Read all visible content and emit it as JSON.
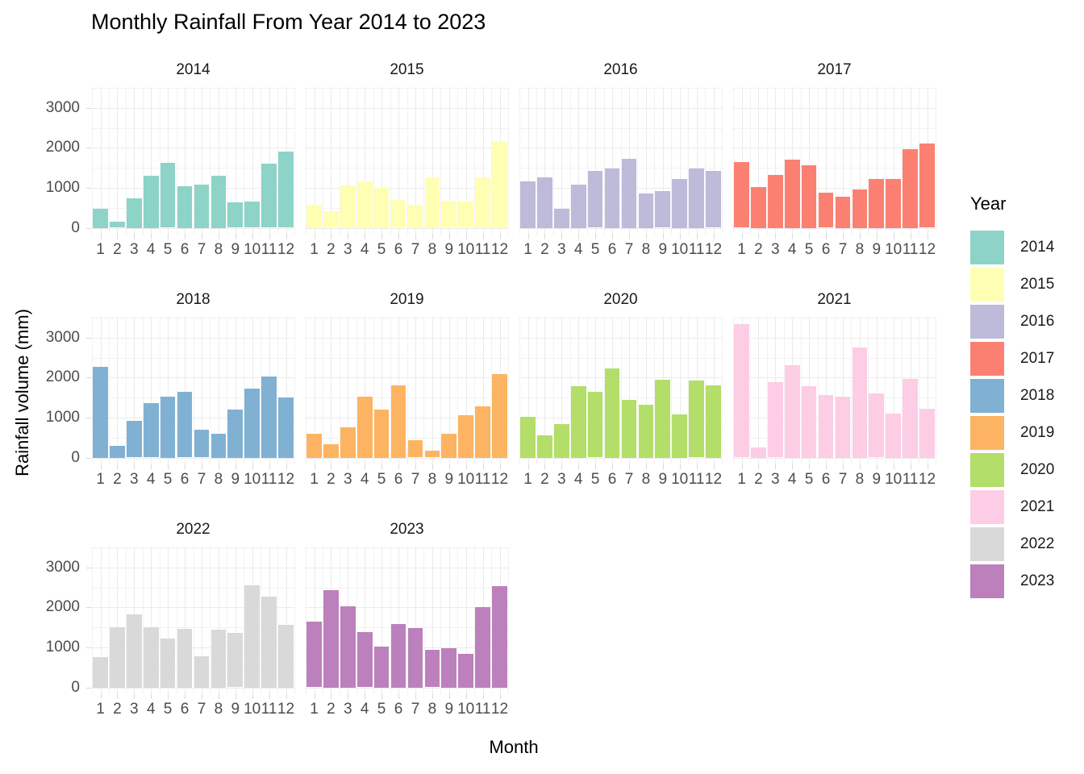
{
  "title": "Monthly Rainfall From Year 2014 to 2023",
  "axes": {
    "x_label": "Month",
    "y_label": "Rainfall volume (mm)",
    "y_tick_labels": [
      "0",
      "1000",
      "2000",
      "3000"
    ],
    "x_tick_labels": [
      "1",
      "2",
      "3",
      "4",
      "5",
      "6",
      "7",
      "8",
      "9",
      "10",
      "11",
      "12"
    ]
  },
  "legend": {
    "title": "Year",
    "entries": [
      {
        "label": "2014",
        "color": "#8DD3C7"
      },
      {
        "label": "2015",
        "color": "#FFFFB3"
      },
      {
        "label": "2016",
        "color": "#BEBADA"
      },
      {
        "label": "2017",
        "color": "#FB8072"
      },
      {
        "label": "2018",
        "color": "#80B1D3"
      },
      {
        "label": "2019",
        "color": "#FDB462"
      },
      {
        "label": "2020",
        "color": "#B3DE69"
      },
      {
        "label": "2021",
        "color": "#FCCDE5"
      },
      {
        "label": "2022",
        "color": "#D9D9D9"
      },
      {
        "label": "2023",
        "color": "#BC80BD"
      }
    ]
  },
  "chart_data": {
    "type": "bar",
    "faceted": true,
    "title": "Monthly Rainfall From Year 2014 to 2023",
    "xlabel": "Month",
    "ylabel": "Rainfall volume (mm)",
    "categories": [
      1,
      2,
      3,
      4,
      5,
      6,
      7,
      8,
      9,
      10,
      11,
      12
    ],
    "y_ticks": [
      0,
      1000,
      2000,
      3000
    ],
    "ylim": [
      0,
      3500
    ],
    "grid": true,
    "legend_position": "right",
    "legend_title": "Year",
    "facets": [
      {
        "year": "2014",
        "color": "#8DD3C7",
        "values": [
          470,
          150,
          740,
          1310,
          1620,
          1040,
          1090,
          1310,
          640,
          650,
          1610,
          1900
        ]
      },
      {
        "year": "2015",
        "color": "#FFFFB3",
        "values": [
          580,
          420,
          1060,
          1160,
          1000,
          690,
          580,
          1260,
          680,
          660,
          1260,
          2180
        ]
      },
      {
        "year": "2016",
        "color": "#BEBADA",
        "values": [
          1170,
          1270,
          470,
          1090,
          1420,
          1490,
          1720,
          850,
          920,
          1220,
          1490,
          1420
        ]
      },
      {
        "year": "2017",
        "color": "#FB8072",
        "values": [
          1640,
          1030,
          1320,
          1710,
          1560,
          870,
          780,
          970,
          1220,
          1220,
          1970,
          2100
        ]
      },
      {
        "year": "2018",
        "color": "#80B1D3",
        "values": [
          2280,
          300,
          920,
          1360,
          1530,
          1640,
          690,
          590,
          1210,
          1720,
          2020,
          1500
        ]
      },
      {
        "year": "2019",
        "color": "#FDB462",
        "values": [
          590,
          340,
          760,
          1520,
          1210,
          1810,
          440,
          180,
          590,
          1070,
          1290,
          2080
        ]
      },
      {
        "year": "2020",
        "color": "#B3DE69",
        "values": [
          1020,
          560,
          840,
          1790,
          1650,
          2230,
          1450,
          1330,
          1950,
          1090,
          1920,
          1800
        ]
      },
      {
        "year": "2021",
        "color": "#FCCDE5",
        "values": [
          3330,
          250,
          1880,
          2320,
          1780,
          1560,
          1520,
          2760,
          1600,
          1110,
          1970,
          1230
        ]
      },
      {
        "year": "2022",
        "color": "#D9D9D9",
        "values": [
          750,
          1500,
          1830,
          1500,
          1220,
          1470,
          770,
          1450,
          1360,
          2560,
          2270,
          1570
        ]
      },
      {
        "year": "2023",
        "color": "#BC80BD",
        "values": [
          1640,
          2440,
          2030,
          1390,
          1030,
          1580,
          1490,
          930,
          990,
          840,
          2000,
          2540
        ]
      }
    ]
  }
}
